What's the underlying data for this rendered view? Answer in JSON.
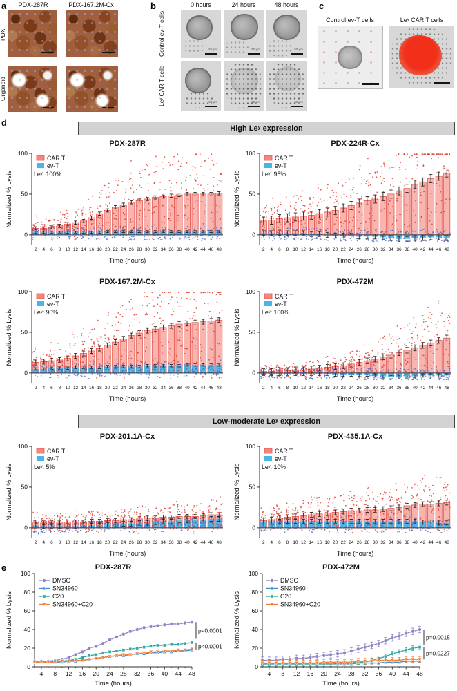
{
  "figure": {
    "panels": {
      "a": {
        "label": "a",
        "col_titles": [
          "PDX-287R",
          "PDX-167.2M-Cx"
        ],
        "row_titles": [
          "PDX",
          "Organoid"
        ]
      },
      "b": {
        "label": "b",
        "col_titles": [
          "0 hours",
          "24 hours",
          "48 hours"
        ],
        "row_titles": [
          "Control ev-T cells",
          "Leʸ CAR T cells"
        ],
        "scale_label": "50 μm"
      },
      "c": {
        "label": "c",
        "col_titles": [
          "Control ev-T cells",
          "Leʸ CAR T cells"
        ]
      },
      "d": {
        "label": "d",
        "group_headers": [
          "High Leʸ expression",
          "Low-moderate Leʸ expression"
        ]
      },
      "e": {
        "label": "e"
      }
    }
  },
  "chart_data": [
    {
      "id": "bar-pdx-287r",
      "type": "bar",
      "title": "PDX-287R",
      "group": "High Leʸ expression",
      "ley_label": "Leʸ: 100%",
      "xlabel": "Time (hours)",
      "ylabel": "Normalized % Lysis",
      "ylim": [
        -12,
        100
      ],
      "yticks": [
        0,
        50,
        100
      ],
      "categories": [
        2,
        4,
        6,
        8,
        10,
        12,
        14,
        16,
        18,
        20,
        22,
        24,
        26,
        28,
        30,
        32,
        34,
        36,
        38,
        40,
        42,
        44,
        46,
        48
      ],
      "series": [
        {
          "name": "CAR T",
          "color": "#e2564b",
          "fill": "#f5867e",
          "values": [
            8,
            8,
            9,
            11,
            13,
            15,
            17,
            21,
            26,
            30,
            34,
            37,
            40,
            42,
            44,
            46,
            47,
            48,
            49,
            50,
            50,
            50,
            50,
            51
          ],
          "err": 2
        },
        {
          "name": "ev-T",
          "color": "#2fa8dd",
          "fill": "#45b8e8",
          "values": [
            3,
            3,
            3,
            3,
            3,
            3,
            3,
            3,
            3,
            4,
            4,
            4,
            4,
            4,
            4,
            4,
            4,
            4,
            4,
            4,
            4,
            4,
            4,
            4
          ],
          "err": 1.2
        }
      ]
    },
    {
      "id": "bar-pdx-224r-cx",
      "type": "bar",
      "title": "PDX-224R-Cx",
      "group": "High Leʸ expression",
      "ley_label": "Leʸ: 95%",
      "xlabel": "Time (hours)",
      "ylabel": "Normalized % Lysis",
      "ylim": [
        -12,
        100
      ],
      "yticks": [
        0,
        50,
        100
      ],
      "categories": [
        2,
        4,
        6,
        8,
        10,
        12,
        14,
        16,
        18,
        20,
        22,
        24,
        26,
        28,
        30,
        32,
        34,
        36,
        38,
        40,
        42,
        44,
        46,
        48
      ],
      "series": [
        {
          "name": "CAR T",
          "color": "#e2564b",
          "fill": "#f5867e",
          "values": [
            17,
            18,
            20,
            21,
            22,
            23,
            24,
            26,
            28,
            30,
            33,
            36,
            39,
            42,
            44,
            47,
            50,
            54,
            57,
            62,
            65,
            69,
            72,
            76
          ],
          "err": 5
        },
        {
          "name": "ev-T",
          "color": "#2fa8dd",
          "fill": "#45b8e8",
          "values": [
            2,
            2,
            2,
            2,
            2,
            2,
            1,
            1,
            0,
            -1,
            -1,
            -1,
            -2,
            -2,
            -2,
            -3,
            -4,
            -5,
            -5,
            -4,
            -4,
            -3,
            -3,
            -4
          ],
          "err": 3
        }
      ]
    },
    {
      "id": "bar-pdx-167-2m-cx",
      "type": "bar",
      "title": "PDX-167.2M-Cx",
      "group": "High Leʸ expression",
      "ley_label": "Leʸ: 90%",
      "xlabel": "Time (hours)",
      "ylabel": "Normalized % Lysis",
      "ylim": [
        -12,
        100
      ],
      "yticks": [
        0,
        50,
        100
      ],
      "categories": [
        2,
        4,
        6,
        8,
        10,
        12,
        14,
        16,
        18,
        20,
        22,
        24,
        26,
        28,
        30,
        32,
        34,
        36,
        38,
        40,
        42,
        44,
        46,
        48
      ],
      "series": [
        {
          "name": "CAR T",
          "color": "#e2564b",
          "fill": "#f5867e",
          "values": [
            13,
            14,
            15,
            16,
            18,
            21,
            24,
            27,
            30,
            34,
            38,
            42,
            46,
            49,
            52,
            54,
            56,
            58,
            60,
            61,
            62,
            63,
            64,
            65
          ],
          "err": 3
        },
        {
          "name": "ev-T",
          "color": "#2fa8dd",
          "fill": "#45b8e8",
          "values": [
            5,
            5,
            6,
            6,
            6,
            7,
            7,
            7,
            7,
            8,
            8,
            8,
            8,
            8,
            9,
            9,
            9,
            9,
            9,
            10,
            10,
            10,
            10,
            10
          ],
          "err": 1.5
        }
      ]
    },
    {
      "id": "bar-pdx-472m",
      "type": "bar",
      "title": "PDX-472M",
      "group": "High Leʸ expression",
      "ley_label": "Leʸ: 100%",
      "xlabel": "Time (hours)",
      "ylabel": "Normalized % Lysis",
      "ylim": [
        -12,
        100
      ],
      "yticks": [
        0,
        50,
        100
      ],
      "categories": [
        2,
        4,
        6,
        8,
        10,
        12,
        14,
        16,
        18,
        20,
        22,
        24,
        26,
        28,
        30,
        32,
        34,
        36,
        38,
        40,
        42,
        44,
        46,
        48
      ],
      "series": [
        {
          "name": "CAR T",
          "color": "#e2564b",
          "fill": "#f5867e",
          "values": [
            2,
            2,
            3,
            3,
            4,
            4,
            5,
            6,
            7,
            8,
            9,
            11,
            13,
            15,
            17,
            20,
            22,
            25,
            28,
            31,
            34,
            37,
            40,
            43
          ],
          "err": 3.5
        },
        {
          "name": "ev-T",
          "color": "#2fa8dd",
          "fill": "#45b8e8",
          "values": [
            -1,
            -1,
            -1,
            -1,
            -1,
            -1,
            -1,
            -1,
            -1,
            -2,
            -2,
            -2,
            -2,
            -2,
            -3,
            -4,
            -5,
            -5,
            -4,
            -4,
            -3,
            -3,
            -3,
            -3
          ],
          "err": 2
        }
      ]
    },
    {
      "id": "bar-pdx-201-1a-cx",
      "type": "bar",
      "title": "PDX-201.1A-Cx",
      "group": "Low-moderate Leʸ expression",
      "ley_label": "Leʸ: 5%",
      "xlabel": "Time (hours)",
      "ylabel": "Normalized % Lysis",
      "ylim": [
        -12,
        100
      ],
      "yticks": [
        0,
        50,
        100
      ],
      "categories": [
        2,
        4,
        6,
        8,
        10,
        12,
        14,
        16,
        18,
        20,
        22,
        24,
        26,
        28,
        30,
        32,
        34,
        36,
        38,
        40,
        42,
        44,
        46,
        48
      ],
      "series": [
        {
          "name": "CAR T",
          "color": "#e2564b",
          "fill": "#f5867e",
          "values": [
            7,
            6,
            6,
            6,
            7,
            7,
            7,
            8,
            8,
            9,
            9,
            10,
            10,
            11,
            12,
            12,
            13,
            13,
            14,
            14,
            14,
            15,
            16,
            16
          ],
          "err": 2.5
        },
        {
          "name": "ev-T",
          "color": "#2fa8dd",
          "fill": "#45b8e8",
          "values": [
            3,
            2,
            2,
            2,
            2,
            2,
            3,
            3,
            3,
            4,
            4,
            5,
            5,
            6,
            6,
            7,
            8,
            8,
            9,
            9,
            10,
            10,
            11,
            11
          ],
          "err": 3
        }
      ]
    },
    {
      "id": "bar-pdx-435-1a-cx",
      "type": "bar",
      "title": "PDX-435.1A-Cx",
      "group": "Low-moderate Leʸ expression",
      "ley_label": "Leʸ: 10%",
      "xlabel": "Time (hours)",
      "ylabel": "Normalized % Lysis",
      "ylim": [
        -12,
        100
      ],
      "yticks": [
        0,
        50,
        100
      ],
      "categories": [
        2,
        4,
        6,
        8,
        10,
        12,
        14,
        16,
        18,
        20,
        22,
        24,
        26,
        28,
        30,
        32,
        34,
        36,
        38,
        40,
        42,
        44,
        46,
        48
      ],
      "series": [
        {
          "name": "CAR T",
          "color": "#e2564b",
          "fill": "#f5867e",
          "values": [
            9,
            10,
            12,
            13,
            14,
            15,
            16,
            17,
            18,
            19,
            20,
            21,
            21,
            22,
            22,
            23,
            24,
            25,
            27,
            28,
            29,
            29,
            30,
            31
          ],
          "err": 3
        },
        {
          "name": "ev-T",
          "color": "#2fa8dd",
          "fill": "#45b8e8",
          "values": [
            7,
            7,
            8,
            8,
            8,
            8,
            8,
            8,
            8,
            8,
            8,
            8,
            8,
            8,
            8,
            8,
            8,
            8,
            8,
            8,
            7,
            7,
            6,
            6
          ],
          "err": 2.5
        }
      ]
    },
    {
      "id": "line-pdx-287r",
      "type": "line",
      "title": "PDX-287R",
      "xlabel": "Time (hours)",
      "ylabel": "Normalized % Lysis",
      "ylim": [
        0,
        100
      ],
      "yticks": [
        0,
        20,
        40,
        60,
        80,
        100
      ],
      "x": [
        2,
        4,
        6,
        8,
        10,
        12,
        14,
        16,
        18,
        20,
        22,
        24,
        26,
        28,
        30,
        32,
        34,
        36,
        38,
        40,
        42,
        44,
        46,
        48
      ],
      "xticks": [
        4,
        8,
        12,
        16,
        20,
        24,
        28,
        32,
        36,
        40,
        44,
        48
      ],
      "series": [
        {
          "name": "DMSO",
          "color": "#8d85c5",
          "marker": "circle",
          "values": [
            6,
            6,
            6,
            7,
            8,
            10,
            13,
            16,
            20,
            22,
            25,
            29,
            32,
            35,
            38,
            40,
            42,
            43,
            44,
            45,
            46,
            46,
            47,
            48
          ],
          "err": 1
        },
        {
          "name": "SN34960",
          "color": "#3e8fd0",
          "marker": "triangle",
          "values": [
            5,
            5,
            5,
            5,
            5,
            6,
            6,
            7,
            8,
            9,
            10,
            11,
            12,
            12,
            13,
            14,
            14,
            15,
            15,
            16,
            16,
            17,
            17,
            18
          ],
          "err": 0
        },
        {
          "name": "C20",
          "color": "#35a8a2",
          "marker": "square",
          "values": [
            5,
            5,
            5,
            6,
            6,
            7,
            8,
            10,
            12,
            13,
            15,
            16,
            17,
            18,
            19,
            20,
            21,
            22,
            23,
            23,
            24,
            24,
            25,
            26
          ],
          "err": 1
        },
        {
          "name": "SN34960+C20",
          "color": "#f17e3a",
          "marker": "triangle-down",
          "values": [
            5,
            5,
            5,
            5,
            6,
            6,
            7,
            7,
            8,
            9,
            10,
            11,
            12,
            13,
            13,
            14,
            15,
            16,
            16,
            17,
            17,
            18,
            18,
            19
          ],
          "err": 0
        }
      ],
      "brackets": [
        {
          "text": "p<0.0001",
          "from": 48,
          "to": 30
        },
        {
          "text": "p<0.0001",
          "from": 26,
          "to": 18
        }
      ]
    },
    {
      "id": "line-pdx-472m",
      "type": "line",
      "title": "PDX-472M",
      "xlabel": "Time (hours)",
      "ylabel": "Normalized % Lysis",
      "ylim": [
        0,
        100
      ],
      "yticks": [
        0,
        20,
        40,
        60,
        80,
        100
      ],
      "x": [
        2,
        4,
        6,
        8,
        10,
        12,
        14,
        16,
        18,
        20,
        22,
        24,
        26,
        28,
        30,
        32,
        34,
        36,
        38,
        40,
        42,
        44,
        46,
        48
      ],
      "xticks": [
        4,
        8,
        12,
        16,
        20,
        24,
        28,
        32,
        36,
        40,
        44,
        48
      ],
      "series": [
        {
          "name": "DMSO",
          "color": "#8d85c5",
          "marker": "circle",
          "values": [
            7,
            7,
            7,
            8,
            8,
            9,
            9,
            10,
            11,
            12,
            13,
            14,
            15,
            17,
            19,
            21,
            23,
            25,
            28,
            31,
            33,
            36,
            38,
            40
          ],
          "err": 3.5
        },
        {
          "name": "SN34960",
          "color": "#3e8fd0",
          "marker": "triangle",
          "values": [
            3,
            3,
            3,
            3,
            3,
            3,
            3,
            3,
            3,
            3,
            3,
            3,
            3,
            3,
            4,
            4,
            4,
            4,
            5,
            5,
            5,
            6,
            6,
            6
          ],
          "err": 1.5
        },
        {
          "name": "C20",
          "color": "#35a8a2",
          "marker": "square",
          "values": [
            3,
            3,
            3,
            3,
            3,
            3,
            3,
            3,
            3,
            3,
            3,
            4,
            4,
            4,
            5,
            5,
            7,
            9,
            11,
            14,
            16,
            18,
            20,
            21
          ],
          "err": 2.5
        },
        {
          "name": "SN34960+C20",
          "color": "#f17e3a",
          "marker": "triangle-down",
          "values": [
            4,
            4,
            4,
            4,
            4,
            4,
            4,
            4,
            4,
            5,
            5,
            5,
            5,
            5,
            6,
            6,
            6,
            7,
            7,
            7,
            7,
            8,
            8,
            8
          ],
          "err": 3
        }
      ],
      "brackets": [
        {
          "text": "p=0.0015",
          "from": 40,
          "to": 23
        },
        {
          "text": "p=0.0227",
          "from": 21,
          "to": 8
        }
      ]
    }
  ]
}
